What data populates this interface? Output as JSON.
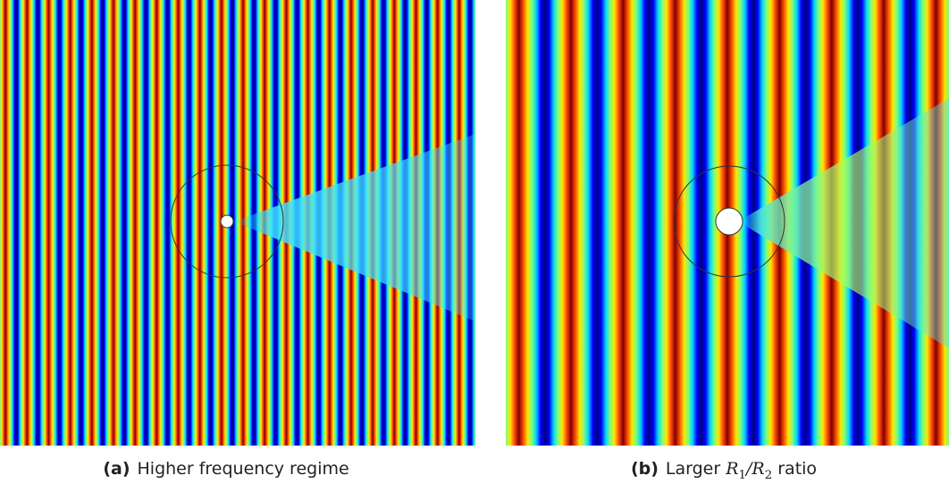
{
  "panels": [
    {
      "tag": "(a)",
      "caption": "Higher frequency regime",
      "colormap": [
        "#00007f",
        "#0000ff",
        "#00d4ff",
        "#7dff7a",
        "#ffe600",
        "#ff4a00",
        "#7f0000"
      ]
    },
    {
      "tag": "(b)",
      "caption_prefix": "Larger",
      "caption_math_r1": "R",
      "caption_math_r1_sub": "1",
      "caption_math_slash": "/",
      "caption_math_r2": "R",
      "caption_math_r2_sub": "2",
      "caption_suffix": "ratio",
      "colormap": [
        "#00007f",
        "#0000ff",
        "#00d4ff",
        "#7dff7a",
        "#ffe600",
        "#ff4a00",
        "#7f0000"
      ]
    }
  ],
  "colors": {
    "outline": "#333333",
    "scatterer_fill": "#ffffff"
  }
}
